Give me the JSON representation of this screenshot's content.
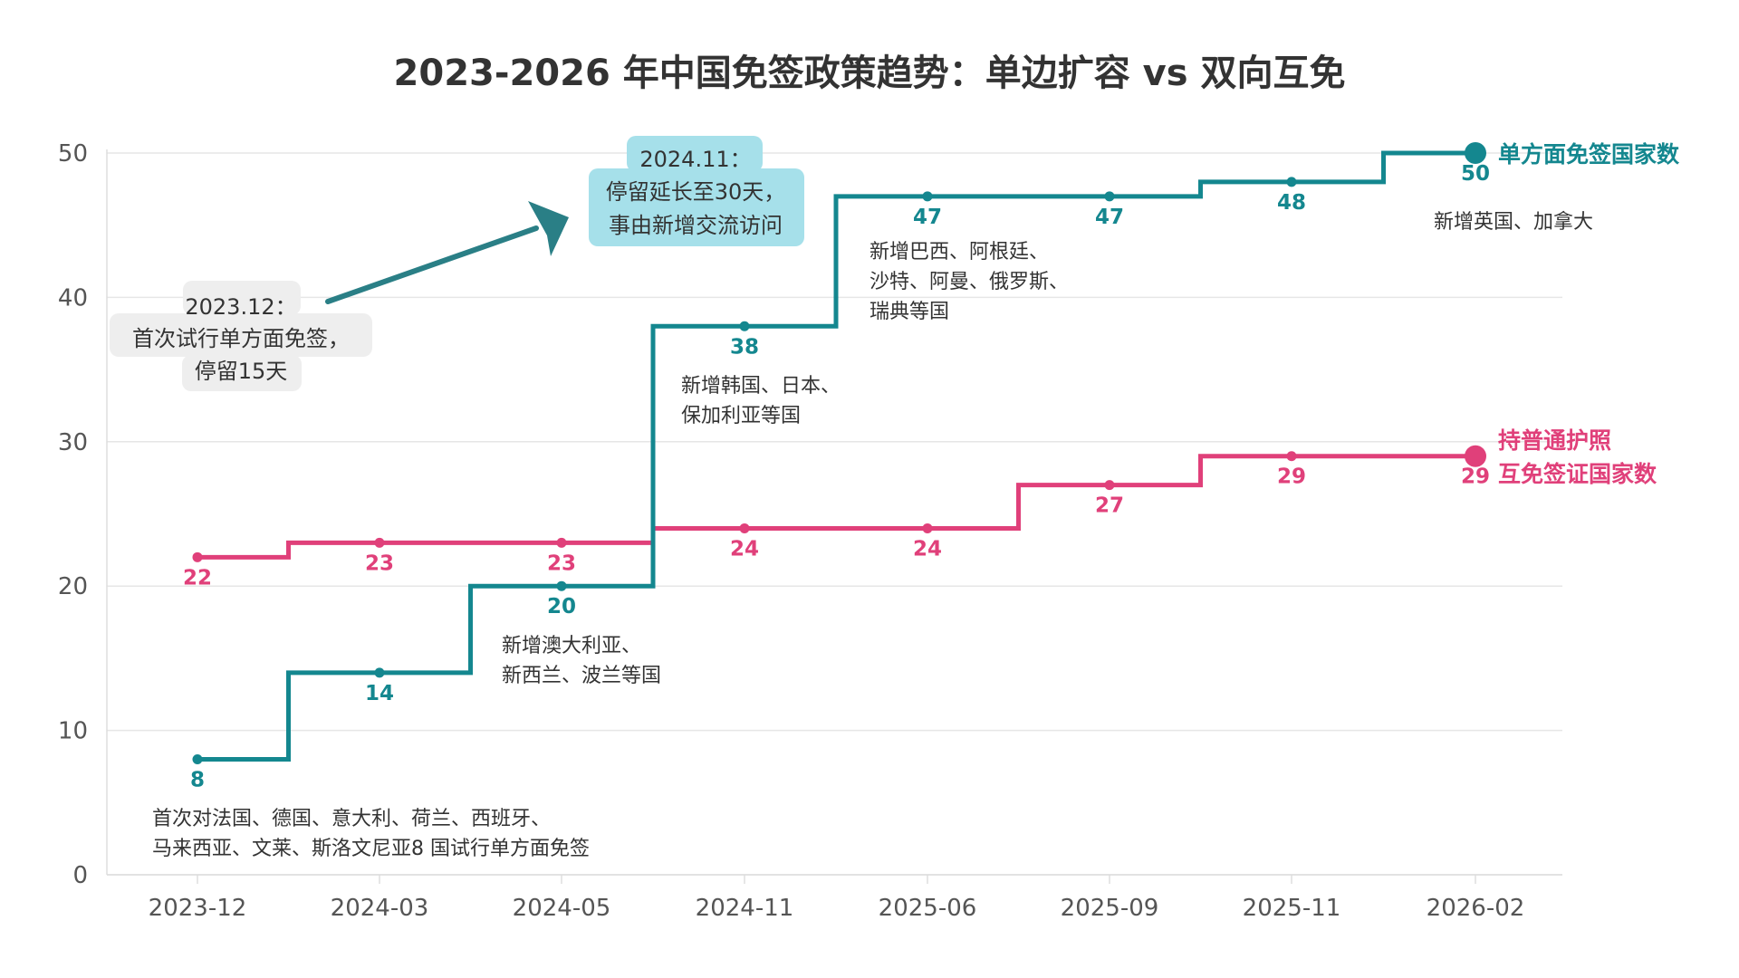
{
  "chart_data": {
    "type": "line",
    "title": "2023-2026 年中国免签政策趋势：单边扩容 vs 双向互免",
    "categories": [
      "2023-12",
      "2024-03",
      "2024-05",
      "2024-11",
      "2025-06",
      "2025-09",
      "2025-11",
      "2026-02"
    ],
    "ylim": [
      0,
      50
    ],
    "yticks": [
      0,
      10,
      20,
      30,
      40,
      50
    ],
    "grid": true,
    "step": true,
    "series": [
      {
        "name": "单方面免签国家数",
        "color": "#14878f",
        "values": [
          8,
          14,
          20,
          38,
          47,
          47,
          48,
          50
        ]
      },
      {
        "name_lines": [
          "持普通护照",
          "互免签证国家数"
        ],
        "color": "#e0407a",
        "values": [
          22,
          23,
          23,
          24,
          24,
          27,
          29,
          29
        ]
      }
    ],
    "annotations": {
      "note_2023_12": [
        "首次对法国、德国、意大利、荷兰、西班牙、",
        "马来西亚、文莱、斯洛文尼亚8 国试行单方面免签"
      ],
      "note_2024_05": [
        "新增澳大利亚、",
        "新西兰、波兰等国"
      ],
      "note_2024_11": [
        "新增韩国、日本、",
        "保加利亚等国"
      ],
      "note_2025_06": [
        "新增巴西、阿根廷、",
        "沙特、阿曼、俄罗斯、",
        "瑞典等国"
      ],
      "note_2026_02": [
        "新增英国、加拿大"
      ],
      "bubble_left": [
        "2023.12：",
        "首次试行单方面免签，",
        "停留15天"
      ],
      "bubble_right": [
        "2024.11：",
        "停留延长至30天，",
        "事由新增交流访问"
      ]
    }
  }
}
